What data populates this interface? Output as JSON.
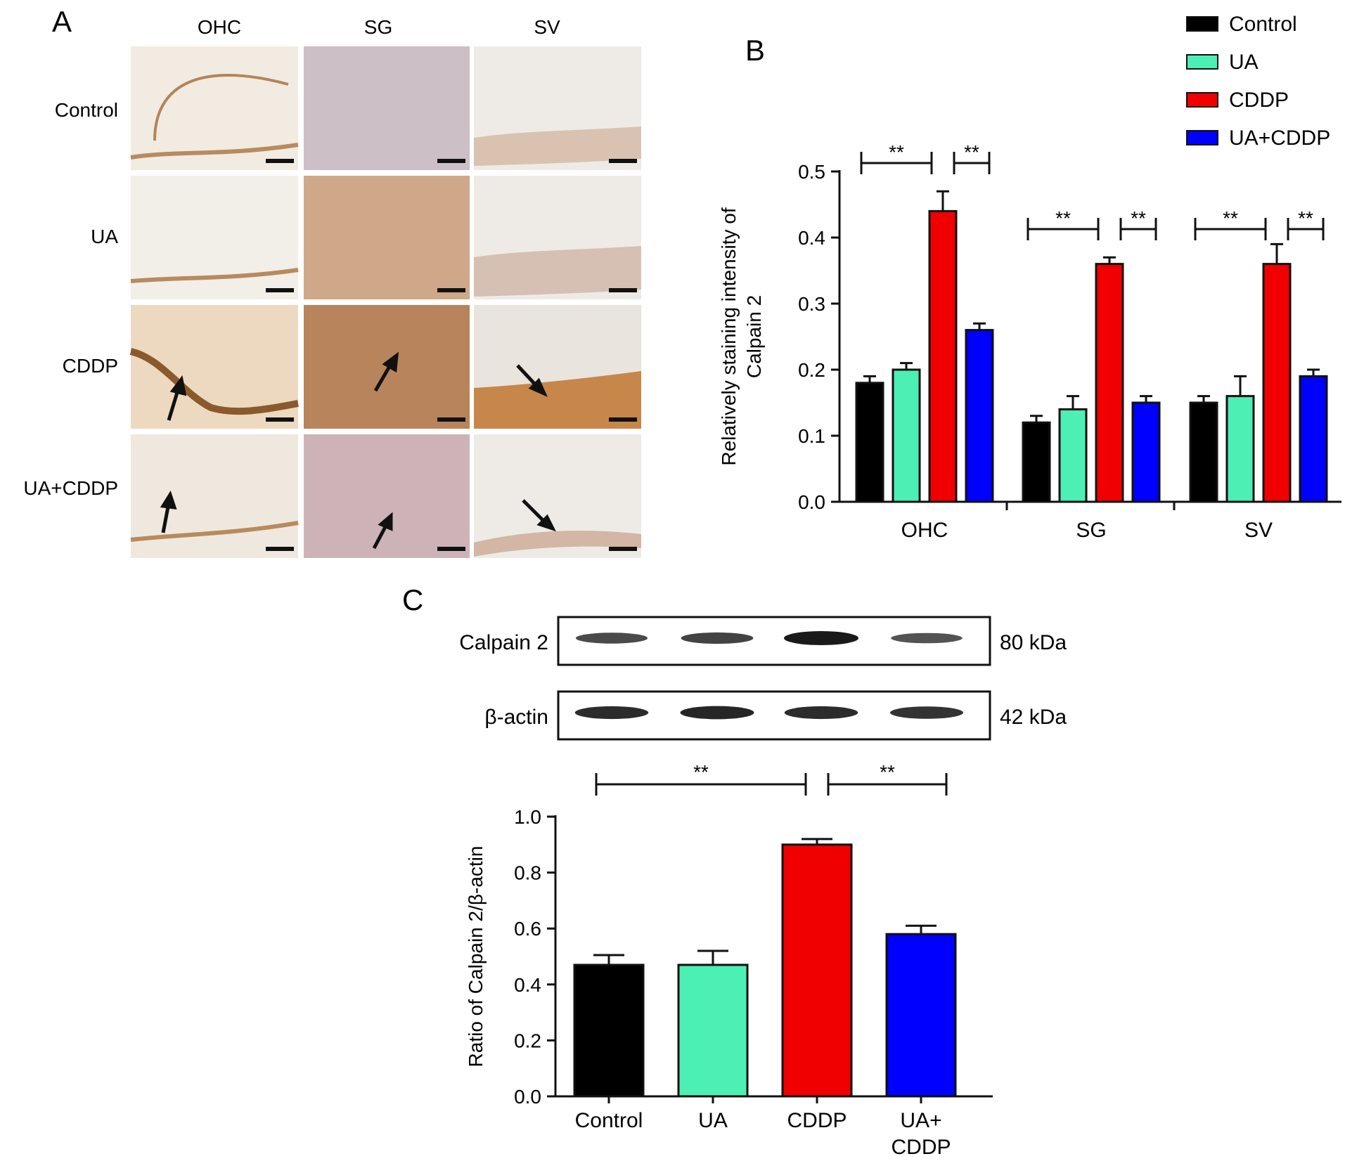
{
  "panel_letters": {
    "a": "A",
    "b": "B",
    "c": "C"
  },
  "panel_a": {
    "columns": [
      "OHC",
      "SG",
      "SV"
    ],
    "rows": [
      "Control",
      "UA",
      "CDDP",
      "UA+CDDP"
    ],
    "tile_colors": {
      "OHC": [
        "#f1ebe2",
        "#f2eee8",
        "#ecd9bf",
        "#efe8de"
      ],
      "SG": [
        "#cdbfc6",
        "#cfa88a",
        "#b8845c",
        "#cdb3b8"
      ],
      "SV": [
        "#eeebe6",
        "#eeebe6",
        "#e9e4dd",
        "#eeebe6"
      ]
    }
  },
  "legend": {
    "items": [
      {
        "label": "Control",
        "color": "#000000"
      },
      {
        "label": "UA",
        "color": "#4df0b4"
      },
      {
        "label": "CDDP",
        "color": "#f00000"
      },
      {
        "label": "UA+CDDP",
        "color": "#0000ff"
      }
    ]
  },
  "western": {
    "rows": [
      {
        "name": "Calpain 2",
        "size": "80 kDa",
        "intensity": [
          0.62,
          0.68,
          1.0,
          0.55
        ]
      },
      {
        "name": "β-actin",
        "size": "42 kDa",
        "intensity": [
          0.85,
          0.9,
          0.85,
          0.8
        ]
      }
    ]
  },
  "significance": "**",
  "chart_data": [
    {
      "type": "bar",
      "panel": "B",
      "ylabel_lines": [
        "Relatively staining intensity of",
        "Calpain 2"
      ],
      "ylim": [
        0,
        0.5
      ],
      "yticks": [
        "0.0",
        "0.1",
        "0.2",
        "0.3",
        "0.4",
        "0.5"
      ],
      "categories": [
        "OHC",
        "SG",
        "SV"
      ],
      "series": [
        {
          "name": "Control",
          "color": "#000000",
          "values": [
            0.18,
            0.12,
            0.15
          ],
          "errors": [
            0.01,
            0.01,
            0.01
          ]
        },
        {
          "name": "UA",
          "color": "#4df0b4",
          "values": [
            0.2,
            0.14,
            0.16
          ],
          "errors": [
            0.01,
            0.02,
            0.03
          ]
        },
        {
          "name": "CDDP",
          "color": "#f00000",
          "values": [
            0.44,
            0.36,
            0.36
          ],
          "errors": [
            0.03,
            0.01,
            0.03
          ]
        },
        {
          "name": "UA+CDDP",
          "color": "#0000ff",
          "values": [
            0.26,
            0.15,
            0.19
          ],
          "errors": [
            0.01,
            0.01,
            0.01
          ]
        }
      ],
      "significance": [
        {
          "category": "OHC",
          "from_series": 0,
          "to_series": 2,
          "label": "**"
        },
        {
          "category": "OHC",
          "from_series": 2,
          "to_series": 3,
          "label": "**"
        },
        {
          "category": "SG",
          "from_series": 0,
          "to_series": 2,
          "label": "**"
        },
        {
          "category": "SG",
          "from_series": 2,
          "to_series": 3,
          "label": "**"
        },
        {
          "category": "SV",
          "from_series": 0,
          "to_series": 2,
          "label": "**"
        },
        {
          "category": "SV",
          "from_series": 2,
          "to_series": 3,
          "label": "**"
        }
      ]
    },
    {
      "type": "bar",
      "panel": "C",
      "ylabel": "Ratio of Calpain 2/β-actin",
      "ylim": [
        0,
        1.0
      ],
      "yticks": [
        "0.0",
        "0.2",
        "0.4",
        "0.6",
        "0.8",
        "1.0"
      ],
      "categories": [
        [
          "Control"
        ],
        [
          "UA"
        ],
        [
          "CDDP"
        ],
        [
          "UA+",
          "CDDP"
        ]
      ],
      "values": [
        0.47,
        0.47,
        0.9,
        0.58
      ],
      "errors": [
        0.035,
        0.05,
        0.02,
        0.03
      ],
      "colors": [
        "#000000",
        "#4df0b4",
        "#f00000",
        "#0000ff"
      ],
      "significance": [
        {
          "from": 0,
          "to": 2,
          "label": "**"
        },
        {
          "from": 2,
          "to": 3,
          "label": "**"
        }
      ]
    }
  ]
}
